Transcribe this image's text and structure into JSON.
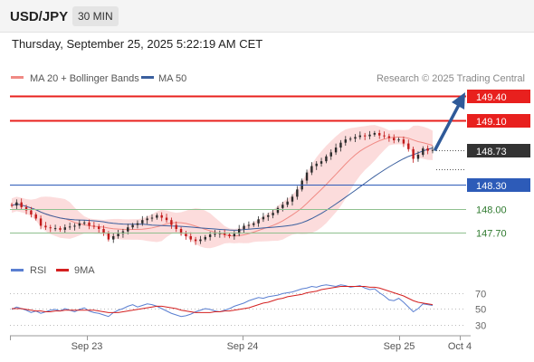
{
  "header": {
    "symbol": "USD/JPY",
    "timeframe": "30 MIN",
    "datetime": "Thursday, September 25, 2025 5:22:19 AM CET"
  },
  "legend": {
    "ma20_label": "MA 20 + Bollinger Bands",
    "ma50_label": "MA 50",
    "credit": "Research © 2025 Trading Central",
    "rsi_label": "RSI",
    "ma9_label": "9MA"
  },
  "colors": {
    "resistance": "#e8201e",
    "support_blue": "#2d5bb8",
    "support_green": "#8fc08f",
    "current_price": "#333333",
    "bollinger_fill": "#fbd6d6",
    "ma20": "#f08a84",
    "ma50": "#3a5f9e",
    "arrow": "#2f5a99",
    "candle_up": "#2b2b2b",
    "candle_down": "#c21a1a",
    "rsi": "#5a7fd1",
    "ma9": "#d42020"
  },
  "chart_data": {
    "type": "candlestick",
    "symbol": "USD/JPY",
    "timeframe": "30 MIN",
    "ylim": [
      147.5,
      149.5
    ],
    "x_ticks": [
      "Sep 23",
      "Sep 24",
      "Sep 25",
      "Oct 4"
    ],
    "levels": [
      {
        "name": "resistance-2",
        "value": 149.4,
        "label": "149.40",
        "kind": "resistance"
      },
      {
        "name": "resistance-1",
        "value": 149.1,
        "label": "149.10",
        "kind": "resistance"
      },
      {
        "name": "current-price",
        "value": 148.73,
        "label": "148.73",
        "kind": "current"
      },
      {
        "name": "support-1",
        "value": 148.3,
        "label": "148.30",
        "kind": "support-blue"
      },
      {
        "name": "support-2",
        "value": 148.0,
        "label": "148.00",
        "kind": "support-green"
      },
      {
        "name": "support-3",
        "value": 147.7,
        "label": "147.70",
        "kind": "support-green"
      }
    ],
    "price_path": [
      148.04,
      148.08,
      148.02,
      147.98,
      147.93,
      147.88,
      147.79,
      147.77,
      147.76,
      147.76,
      147.74,
      147.77,
      147.78,
      147.79,
      147.82,
      147.83,
      147.79,
      147.78,
      147.75,
      147.7,
      147.62,
      147.66,
      147.69,
      147.72,
      147.77,
      147.8,
      147.82,
      147.86,
      147.88,
      147.89,
      147.92,
      147.89,
      147.86,
      147.8,
      147.75,
      147.69,
      147.66,
      147.62,
      147.6,
      147.62,
      147.65,
      147.68,
      147.69,
      147.7,
      147.68,
      147.66,
      147.69,
      147.75,
      147.79,
      147.8,
      147.82,
      147.87,
      147.9,
      147.92,
      147.95,
      148.01,
      148.05,
      148.09,
      148.15,
      148.24,
      148.35,
      148.45,
      148.53,
      148.56,
      148.59,
      148.65,
      148.7,
      148.76,
      148.82,
      148.86,
      148.87,
      148.89,
      148.91,
      148.9,
      148.92,
      148.94,
      148.91,
      148.9,
      148.88,
      148.85,
      148.86,
      148.81,
      148.74,
      148.62,
      148.67,
      148.75,
      148.72,
      148.73
    ],
    "indicators": [
      "MA 20 + Bollinger Bands",
      "MA 50"
    ],
    "rsi_ticks": [
      70,
      50,
      30
    ],
    "rsi": [
      49,
      52,
      50,
      48,
      45,
      47,
      44,
      46,
      48,
      49,
      47,
      50,
      48,
      46,
      49,
      51,
      47,
      45,
      44,
      42,
      40,
      45,
      48,
      50,
      53,
      55,
      52,
      54,
      56,
      55,
      53,
      50,
      47,
      44,
      42,
      40,
      41,
      43,
      46,
      48,
      50,
      49,
      47,
      46,
      48,
      50,
      53,
      55,
      57,
      60,
      62,
      64,
      63,
      65,
      66,
      67,
      69,
      70,
      71,
      73,
      75,
      76,
      78,
      77,
      79,
      80,
      79,
      78,
      80,
      79,
      77,
      78,
      79,
      76,
      74,
      75,
      70,
      66,
      61,
      60,
      63,
      58,
      52,
      46,
      50,
      56,
      55,
      54
    ],
    "rsi_ma9": [
      50,
      50,
      50,
      49,
      48,
      47,
      47,
      46,
      46,
      47,
      47,
      48,
      48,
      48,
      48,
      48,
      48,
      48,
      47,
      46,
      45,
      45,
      45,
      46,
      47,
      48,
      49,
      50,
      51,
      52,
      53,
      53,
      52,
      51,
      50,
      48,
      47,
      46,
      45,
      45,
      45,
      45,
      46,
      46,
      47,
      47,
      48,
      49,
      50,
      51,
      53,
      55,
      57,
      58,
      60,
      62,
      63,
      65,
      66,
      67,
      68,
      70,
      71,
      72,
      74,
      75,
      76,
      77,
      78,
      78,
      78,
      78,
      78,
      78,
      77,
      77,
      76,
      74,
      72,
      70,
      68,
      66,
      63,
      60,
      58,
      57,
      56,
      55
    ]
  }
}
